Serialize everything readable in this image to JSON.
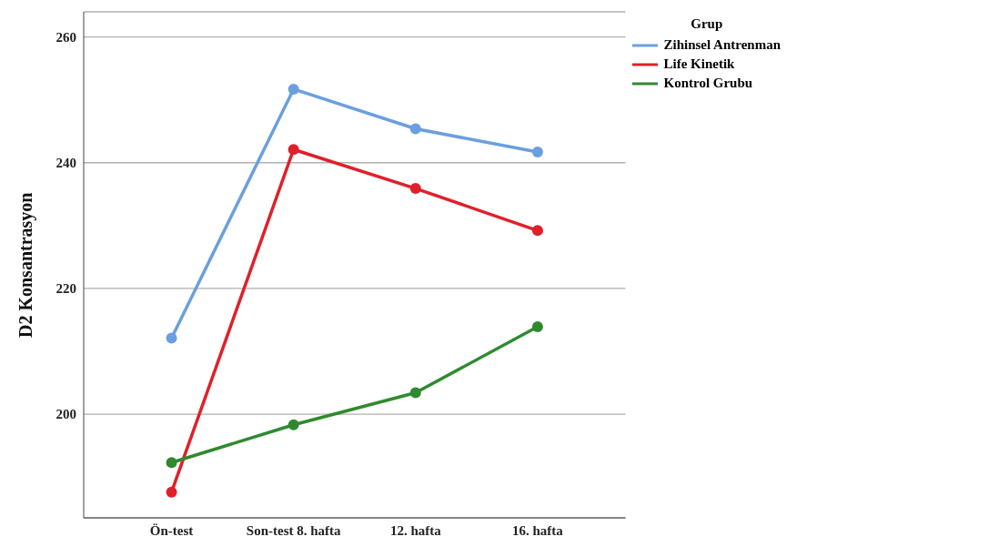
{
  "chart_data": {
    "type": "line",
    "ylabel": "D2 Konsantrasyon",
    "legend_title": "Grup",
    "categories": [
      "Ön-test",
      "Son-test 8. hafta",
      "12. hafta",
      "16. hafta"
    ],
    "series": [
      {
        "name": "Zihinsel Antrenman",
        "color": "#6a9fe0",
        "values": [
          212.1,
          251.7,
          245.4,
          241.7
        ]
      },
      {
        "name": "Life Kinetik",
        "color": "#e0202a",
        "values": [
          187.6,
          242.1,
          235.9,
          229.2
        ]
      },
      {
        "name": "Kontrol Grubu",
        "color": "#2f8a2f",
        "values": [
          192.3,
          198.3,
          203.4,
          213.9
        ]
      }
    ],
    "ylim": [
      183.5,
      264
    ],
    "yticks": [
      200,
      220,
      240,
      260
    ],
    "grid": "y",
    "legend": "top right",
    "marker": "circle",
    "line_style": "solid"
  }
}
